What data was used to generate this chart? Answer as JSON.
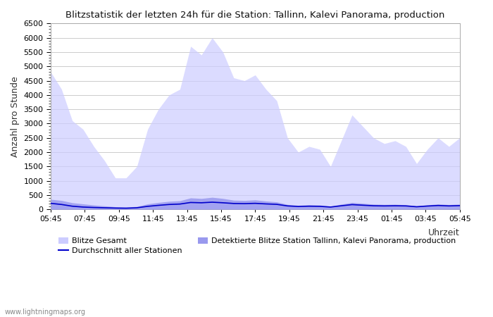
{
  "title": "Blitzstatistik der letzten 24h für die Station: Tallinn, Kalevi Panorama, production",
  "ylabel": "Anzahl pro Stunde",
  "xlabel": "Uhrzeit",
  "watermark": "www.lightningmaps.org",
  "x_labels": [
    "05:45",
    "07:45",
    "09:45",
    "11:45",
    "13:45",
    "15:45",
    "17:45",
    "19:45",
    "21:45",
    "23:45",
    "01:45",
    "03:45",
    "05:45"
  ],
  "ylim": [
    0,
    6500
  ],
  "yticks": [
    0,
    500,
    1000,
    1500,
    2000,
    2500,
    3000,
    3500,
    4000,
    4500,
    5000,
    5500,
    6000,
    6500
  ],
  "background_color": "#ffffff",
  "plot_bg_color": "#ffffff",
  "grid_color": "#cccccc",
  "area1_color": "#ccccff",
  "area1_alpha": 0.7,
  "area1_label": "Blitze Gesamt",
  "area2_color": "#9999ee",
  "area2_alpha": 0.85,
  "area2_label": "Detektierte Blitze Station Tallinn, Kalevi Panorama, production",
  "line_color": "#0000cc",
  "line_label": "Durchschnitt aller Stationen",
  "blitze_gesamt": [
    4800,
    4200,
    3100,
    2800,
    2200,
    1700,
    1100,
    1100,
    1500,
    2800,
    3500,
    4000,
    4200,
    5700,
    5400,
    6000,
    5500,
    4600,
    4500,
    4700,
    4200,
    3800,
    2500,
    2000,
    2200,
    2100,
    1500,
    2400,
    3300,
    2900,
    2500,
    2300,
    2400,
    2200,
    1600,
    2100,
    2500,
    2200,
    2500
  ],
  "detektierte_blitze": [
    350,
    310,
    230,
    190,
    150,
    120,
    90,
    80,
    100,
    190,
    240,
    280,
    300,
    400,
    380,
    420,
    380,
    320,
    310,
    330,
    290,
    260,
    170,
    140,
    160,
    150,
    110,
    180,
    240,
    210,
    180,
    170,
    175,
    160,
    120,
    155,
    185,
    165,
    180
  ],
  "durchschnitt": [
    210,
    170,
    110,
    80,
    65,
    55,
    45,
    40,
    55,
    105,
    140,
    170,
    185,
    240,
    230,
    250,
    230,
    205,
    200,
    210,
    190,
    175,
    120,
    100,
    110,
    105,
    80,
    125,
    165,
    145,
    125,
    120,
    125,
    120,
    90,
    115,
    135,
    120,
    130
  ]
}
